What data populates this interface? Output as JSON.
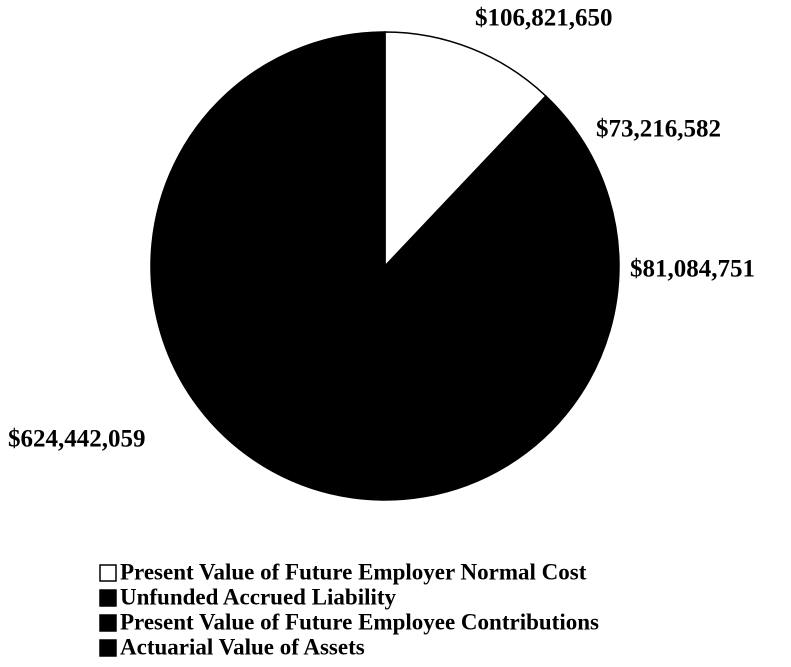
{
  "chart_data": {
    "type": "pie",
    "categories": [
      "Present Value of Future Employer Normal Cost",
      "Unfunded Accrued Liability",
      "Present Value of Future Employee Contributions",
      "Actuarial Value of Assets"
    ],
    "values": [
      106821650,
      73216582,
      81084751,
      624442059
    ],
    "value_labels": [
      "$106,821,650",
      "$73,216,582",
      "$81,084,751",
      "$624,442,059"
    ],
    "colors": [
      "#ffffff",
      "#000000",
      "#000000",
      "#000000"
    ],
    "legend": "bottom"
  }
}
